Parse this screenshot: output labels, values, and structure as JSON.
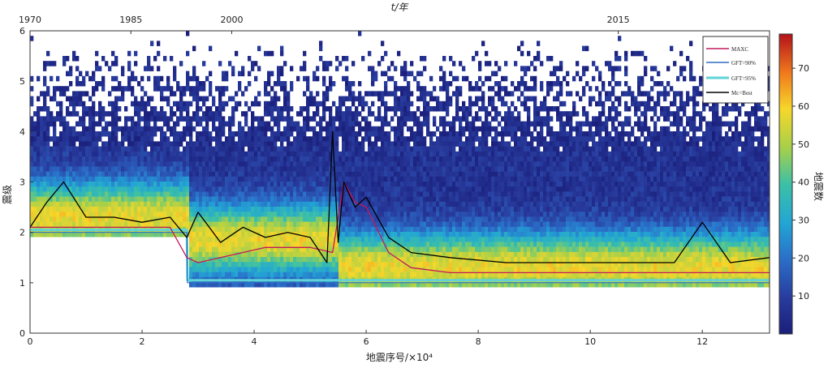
{
  "chart_data": {
    "type": "heatmap",
    "title": "",
    "xlabel": "地震序号/×10⁴",
    "ylabel": "震级",
    "top_axis_label": "t/年",
    "colorbar_label": "地震数",
    "xlim": [
      0,
      13.2
    ],
    "ylim": [
      0,
      6
    ],
    "x_ticks": [
      "0",
      "2",
      "4",
      "6",
      "8",
      "10",
      "12"
    ],
    "y_ticks": [
      "0",
      "1",
      "2",
      "3",
      "4",
      "5",
      "6"
    ],
    "top_ticks": [
      {
        "label": "1970",
        "x": 0
      },
      {
        "label": "1985",
        "x": 1.8
      },
      {
        "label": "2000",
        "x": 3.6
      },
      {
        "label": "2015",
        "x": 10.5
      }
    ],
    "colorbar_range": [
      0,
      79
    ],
    "colorbar_ticks": [
      "10",
      "20",
      "30",
      "40",
      "50",
      "60",
      "70"
    ],
    "legend_position": "top-right",
    "colors": {
      "MAXC": "#c2185b",
      "GFT-90%": "#2f6ec4",
      "GFT-95%": "#5fd3d6",
      "Mc-Best": "#000000"
    },
    "series": [
      {
        "name": "MAXC",
        "x": [
          0.0,
          0.5,
          1.0,
          1.5,
          2.0,
          2.5,
          2.8,
          3.0,
          3.4,
          3.8,
          4.2,
          4.6,
          5.0,
          5.4,
          5.6,
          5.8,
          6.0,
          6.4,
          6.8,
          7.5,
          8.5,
          9.5,
          10.5,
          11.5,
          12.5,
          13.2
        ],
        "y": [
          2.1,
          2.1,
          2.1,
          2.1,
          2.1,
          2.1,
          1.5,
          1.4,
          1.5,
          1.6,
          1.7,
          1.7,
          1.7,
          1.6,
          3.0,
          2.6,
          2.5,
          1.6,
          1.3,
          1.2,
          1.2,
          1.2,
          1.2,
          1.2,
          1.2,
          1.2
        ]
      },
      {
        "name": "GFT-90%",
        "x": [
          0.0,
          2.8,
          2.81,
          13.2
        ],
        "y": [
          2.0,
          2.0,
          1.0,
          1.0
        ]
      },
      {
        "name": "GFT-95%",
        "x": [
          0.0,
          2.8,
          2.81,
          13.2
        ],
        "y": [
          2.05,
          2.05,
          1.05,
          1.05
        ]
      },
      {
        "name": "Mc=Best",
        "x": [
          0.0,
          0.3,
          0.6,
          1.0,
          1.5,
          2.0,
          2.5,
          2.8,
          3.0,
          3.4,
          3.8,
          4.2,
          4.6,
          5.0,
          5.3,
          5.4,
          5.5,
          5.6,
          5.8,
          6.0,
          6.4,
          6.8,
          7.5,
          8.5,
          9.5,
          10.5,
          11.5,
          12.0,
          12.5,
          13.2
        ],
        "y": [
          2.1,
          2.6,
          3.0,
          2.3,
          2.3,
          2.2,
          2.3,
          1.9,
          2.4,
          1.8,
          2.1,
          1.9,
          2.0,
          1.9,
          1.4,
          4.0,
          1.8,
          3.0,
          2.5,
          2.7,
          1.9,
          1.6,
          1.5,
          1.4,
          1.4,
          1.4,
          1.4,
          2.2,
          1.4,
          1.5
        ]
      }
    ],
    "legend_labels": [
      "MAXC",
      "GFT=90%",
      "GFT=95%",
      "Mc=Best"
    ]
  }
}
